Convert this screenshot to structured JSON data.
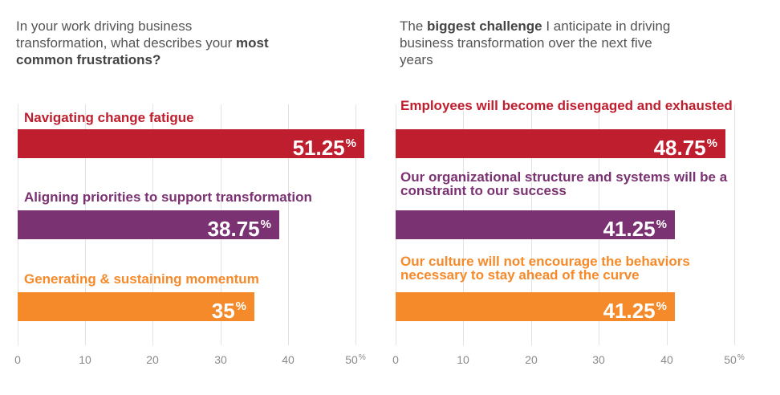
{
  "chart_data": [
    {
      "type": "bar",
      "orientation": "horizontal",
      "title_parts": [
        "In your work driving business transformation, what describes your ",
        "most common frustrations?"
      ],
      "categories": [
        "Navigating change fatigue",
        "Aligning priorities to support transformation",
        "Generating & sustaining momentum"
      ],
      "values": [
        51.25,
        38.75,
        35
      ],
      "value_labels": [
        "51.25",
        "38.75",
        "35"
      ],
      "value_suffix": "%",
      "colors": [
        "#be1e2d",
        "#7b3272",
        "#f58a2a"
      ],
      "xlim": [
        0,
        50
      ],
      "ticks": [
        "0",
        "10",
        "20",
        "30",
        "40",
        "50"
      ],
      "tick_suffix": "%"
    },
    {
      "type": "bar",
      "orientation": "horizontal",
      "title_parts": [
        "The ",
        "biggest challenge",
        " I anticipate in driving business transformation over the next five years"
      ],
      "categories": [
        "Employees will become disengaged and exhausted",
        "Our organizational structure and systems will be a constraint to our success",
        "Our culture will not encourage the behaviors necessary to stay ahead of the curve"
      ],
      "values": [
        48.75,
        41.25,
        41.25
      ],
      "value_labels": [
        "48.75",
        "41.25",
        "41.25"
      ],
      "value_suffix": "%",
      "colors": [
        "#be1e2d",
        "#7b3272",
        "#f58a2a"
      ],
      "xlim": [
        0,
        50
      ],
      "ticks": [
        "0",
        "10",
        "20",
        "30",
        "40",
        "50"
      ],
      "tick_suffix": "%"
    }
  ]
}
